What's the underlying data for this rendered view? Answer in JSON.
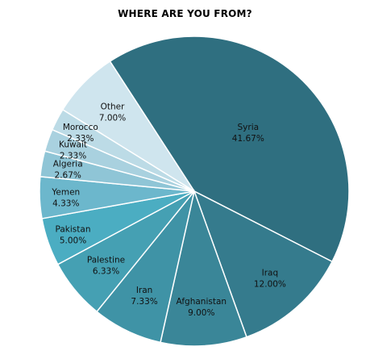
{
  "chart_data": {
    "type": "pie",
    "title": "WHERE ARE YOU FROM?",
    "slices": [
      {
        "label": "Syria",
        "value": "41.67%",
        "percent": 41.67,
        "color": "#2f6f80"
      },
      {
        "label": "Iraq",
        "value": "12.00%",
        "percent": 12.0,
        "color": "#357b8d"
      },
      {
        "label": "Afghanistan",
        "value": "9.00%",
        "percent": 9.0,
        "color": "#3a8698"
      },
      {
        "label": "Iran",
        "value": "7.33%",
        "percent": 7.33,
        "color": "#3f93a6"
      },
      {
        "label": "Palestine",
        "value": "6.33%",
        "percent": 6.33,
        "color": "#45a0b3"
      },
      {
        "label": "Pakistan",
        "value": "5.00%",
        "percent": 5.0,
        "color": "#4badc2"
      },
      {
        "label": "Yemen",
        "value": "4.33%",
        "percent": 4.33,
        "color": "#6cb7cc"
      },
      {
        "label": "Algeria",
        "value": "2.67%",
        "percent": 2.67,
        "color": "#8fc5d6"
      },
      {
        "label": "Kuwait",
        "value": "2.33%",
        "percent": 2.33,
        "color": "#a9d1df"
      },
      {
        "label": "Morocco",
        "value": "2.33%",
        "percent": 2.33,
        "color": "#bcdbe6"
      },
      {
        "label": "Other",
        "value": "7.00%",
        "percent": 7.0,
        "color": "#cfe5ee"
      }
    ]
  }
}
